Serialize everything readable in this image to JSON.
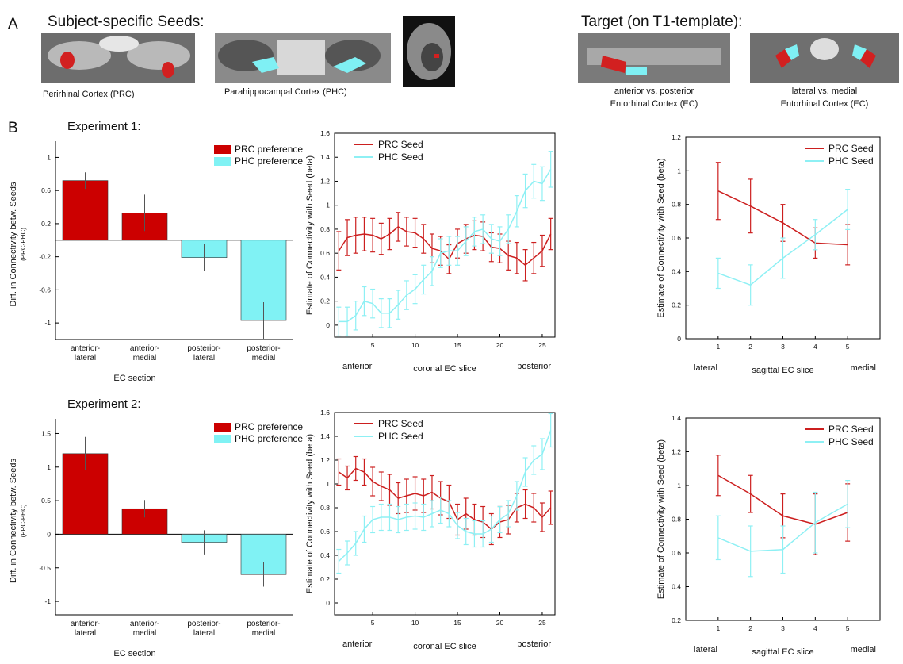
{
  "panel_a": {
    "letter": "A",
    "seeds_title": "Subject-specific Seeds:",
    "prc_caption": "Perirhinal Cortex (PRC)",
    "phc_caption": "Parahippocampal Cortex (PHC)",
    "target_title": "Target (on T1-template):",
    "target1_line1": "anterior vs. posterior",
    "target1_line2": "Entorhinal Cortex (EC)",
    "target2_line1": "lateral vs. medial",
    "target2_line2": "Entorhinal Cortex (EC)"
  },
  "panel_b_letter": "B",
  "chart_data": [
    {
      "type": "bar",
      "title": "Experiment 1:",
      "y_label": "Diff. in Connectivity betw. Seeds",
      "y_sublabel": "(PRC-PHC)",
      "x_label": "EC section",
      "categories": [
        "anterior-\nlateral",
        "anterior-\nmedial",
        "posterior-\nlateral",
        "posterior-\nmedial"
      ],
      "series": [
        {
          "name": "PRC preference",
          "color": "#cc0000",
          "values": [
            0.72,
            0.33,
            null,
            null
          ],
          "errors": [
            0.1,
            0.22,
            null,
            null
          ]
        },
        {
          "name": "PHC preference",
          "color": "#80f2f4",
          "values": [
            null,
            null,
            -0.21,
            -0.97
          ],
          "errors": [
            null,
            null,
            0.16,
            0.22
          ]
        }
      ],
      "ylim": [
        -1.2,
        1.1
      ],
      "yticks": [
        -1,
        -0.6,
        -0.2,
        0.2,
        0.6,
        1
      ],
      "legend": "top-right"
    },
    {
      "type": "line",
      "y_label": "Estimate of Connectivity with Seed (beta)",
      "x_label": "coronal EC slice",
      "x_start_label": "anterior",
      "x_end_label": "posterior",
      "x": [
        1,
        2,
        3,
        4,
        5,
        6,
        7,
        8,
        9,
        10,
        11,
        12,
        13,
        14,
        15,
        16,
        17,
        18,
        19,
        20,
        21,
        22,
        23,
        24,
        25,
        26
      ],
      "series": [
        {
          "name": "PRC Seed",
          "color": "#cc1f1f",
          "values": [
            0.62,
            0.73,
            0.75,
            0.76,
            0.75,
            0.72,
            0.76,
            0.82,
            0.78,
            0.77,
            0.72,
            0.64,
            0.62,
            0.55,
            0.68,
            0.72,
            0.75,
            0.74,
            0.65,
            0.64,
            0.58,
            0.56,
            0.5,
            0.56,
            0.62,
            0.76
          ],
          "errors": [
            0.16,
            0.15,
            0.15,
            0.14,
            0.14,
            0.13,
            0.13,
            0.12,
            0.12,
            0.12,
            0.12,
            0.12,
            0.12,
            0.12,
            0.12,
            0.12,
            0.12,
            0.12,
            0.12,
            0.12,
            0.12,
            0.13,
            0.13,
            0.13,
            0.13,
            0.13
          ]
        },
        {
          "name": "PHC Seed",
          "color": "#8ef0f4",
          "values": [
            0.03,
            0.03,
            0.08,
            0.2,
            0.18,
            0.1,
            0.1,
            0.17,
            0.25,
            0.3,
            0.38,
            0.45,
            0.6,
            0.62,
            0.62,
            0.7,
            0.78,
            0.8,
            0.72,
            0.7,
            0.8,
            0.95,
            1.12,
            1.2,
            1.18,
            1.3
          ],
          "errors": [
            0.12,
            0.12,
            0.12,
            0.12,
            0.12,
            0.12,
            0.12,
            0.12,
            0.12,
            0.12,
            0.12,
            0.12,
            0.12,
            0.12,
            0.12,
            0.12,
            0.12,
            0.12,
            0.12,
            0.12,
            0.12,
            0.13,
            0.14,
            0.14,
            0.14,
            0.15
          ]
        }
      ],
      "xlim": [
        0.5,
        26.5
      ],
      "xticks": [
        5,
        10,
        15,
        20,
        25
      ],
      "ylim": [
        -0.1,
        1.6
      ],
      "yticks": [
        0,
        0.2,
        0.4,
        0.6,
        0.8,
        1,
        1.2,
        1.4,
        1.6
      ],
      "legend": "top-left"
    },
    {
      "type": "line",
      "y_label": "Estimate of Connectivity with Seed (beta)",
      "x_label": "sagittal EC slice",
      "x_start_label": "lateral",
      "x_end_label": "medial",
      "x": [
        1,
        2,
        3,
        4,
        5
      ],
      "series": [
        {
          "name": "PRC Seed",
          "color": "#cc1f1f",
          "values": [
            0.88,
            0.79,
            0.69,
            0.57,
            0.56
          ],
          "errors": [
            0.17,
            0.16,
            0.11,
            0.09,
            0.12
          ]
        },
        {
          "name": "PHC Seed",
          "color": "#8ef0f4",
          "values": [
            0.39,
            0.32,
            0.48,
            0.62,
            0.77
          ],
          "errors": [
            0.09,
            0.12,
            0.12,
            0.09,
            0.12
          ]
        }
      ],
      "xlim": [
        0,
        6
      ],
      "xticks": [
        1,
        2,
        3,
        4,
        5
      ],
      "ylim": [
        0,
        1.2
      ],
      "yticks": [
        0,
        0.2,
        0.4,
        0.6,
        0.8,
        1,
        1.2
      ],
      "legend": "top-right"
    },
    {
      "type": "bar",
      "title": "Experiment 2:",
      "y_label": "Diff. in Connectivity betw. Seeds",
      "y_sublabel": "(PRC-PHC)",
      "x_label": "EC section",
      "categories": [
        "anterior-\nlateral",
        "anterior-\nmedial",
        "posterior-\nlateral",
        "posterior-\nmedial"
      ],
      "series": [
        {
          "name": "PRC preference",
          "color": "#cc0000",
          "values": [
            1.2,
            0.38,
            null,
            null
          ],
          "errors": [
            0.25,
            0.13,
            null,
            null
          ]
        },
        {
          "name": "PHC preference",
          "color": "#80f2f4",
          "values": [
            null,
            null,
            -0.12,
            -0.6
          ],
          "errors": [
            null,
            null,
            0.18,
            0.18
          ]
        }
      ],
      "ylim": [
        -1.2,
        1.6
      ],
      "yticks": [
        -1,
        -0.5,
        0,
        0.5,
        1,
        1.5
      ],
      "legend": "top-right"
    },
    {
      "type": "line",
      "y_label": "Estimate of Connectivity with Seed (beta)",
      "x_label": "coronal EC slice",
      "x_start_label": "anterior",
      "x_end_label": "posterior",
      "x": [
        1,
        2,
        3,
        4,
        5,
        6,
        7,
        8,
        9,
        10,
        11,
        12,
        13,
        14,
        15,
        16,
        17,
        18,
        19,
        20,
        21,
        22,
        23,
        24,
        25,
        26
      ],
      "series": [
        {
          "name": "PRC Seed",
          "color": "#cc1f1f",
          "values": [
            1.1,
            1.05,
            1.13,
            1.1,
            1.02,
            0.98,
            0.95,
            0.88,
            0.9,
            0.92,
            0.9,
            0.93,
            0.88,
            0.85,
            0.7,
            0.75,
            0.7,
            0.68,
            0.62,
            0.68,
            0.7,
            0.8,
            0.83,
            0.8,
            0.72,
            0.8
          ],
          "errors": [
            0.11,
            0.1,
            0.1,
            0.11,
            0.12,
            0.12,
            0.13,
            0.13,
            0.14,
            0.14,
            0.14,
            0.14,
            0.14,
            0.14,
            0.13,
            0.13,
            0.13,
            0.13,
            0.13,
            0.13,
            0.12,
            0.12,
            0.12,
            0.12,
            0.12,
            0.14
          ]
        },
        {
          "name": "PHC Seed",
          "color": "#8ef0f4",
          "values": [
            0.35,
            0.42,
            0.5,
            0.62,
            0.7,
            0.72,
            0.72,
            0.7,
            0.72,
            0.73,
            0.72,
            0.75,
            0.78,
            0.75,
            0.65,
            0.6,
            0.58,
            0.58,
            0.62,
            0.7,
            0.75,
            0.9,
            1.1,
            1.2,
            1.25,
            1.45
          ],
          "errors": [
            0.1,
            0.1,
            0.1,
            0.11,
            0.11,
            0.11,
            0.11,
            0.11,
            0.11,
            0.11,
            0.11,
            0.11,
            0.11,
            0.11,
            0.11,
            0.11,
            0.11,
            0.11,
            0.11,
            0.11,
            0.11,
            0.12,
            0.12,
            0.12,
            0.13,
            0.14
          ]
        }
      ],
      "xlim": [
        0.5,
        26.5
      ],
      "xticks": [
        5,
        10,
        15,
        20,
        25
      ],
      "ylim": [
        -0.1,
        1.6
      ],
      "yticks": [
        0,
        0.2,
        0.4,
        0.6,
        0.8,
        1,
        1.2,
        1.4,
        1.6
      ],
      "legend": "top-left"
    },
    {
      "type": "line",
      "y_label": "Estimate of Connectivity with Seed (beta)",
      "x_label": "sagittal EC slice",
      "x_start_label": "lateral",
      "x_end_label": "medial",
      "x": [
        1,
        2,
        3,
        4,
        5
      ],
      "series": [
        {
          "name": "PRC Seed",
          "color": "#cc1f1f",
          "values": [
            1.06,
            0.95,
            0.82,
            0.77,
            0.84
          ],
          "errors": [
            0.12,
            0.11,
            0.13,
            0.18,
            0.17
          ]
        },
        {
          "name": "PHC Seed",
          "color": "#8ef0f4",
          "values": [
            0.69,
            0.61,
            0.62,
            0.78,
            0.89
          ],
          "errors": [
            0.13,
            0.15,
            0.14,
            0.18,
            0.14
          ]
        }
      ],
      "xlim": [
        0,
        6
      ],
      "xticks": [
        1,
        2,
        3,
        4,
        5
      ],
      "ylim": [
        0.2,
        1.4
      ],
      "yticks": [
        0.2,
        0.4,
        0.6,
        0.8,
        1,
        1.2,
        1.4
      ],
      "legend": "top-right"
    }
  ]
}
